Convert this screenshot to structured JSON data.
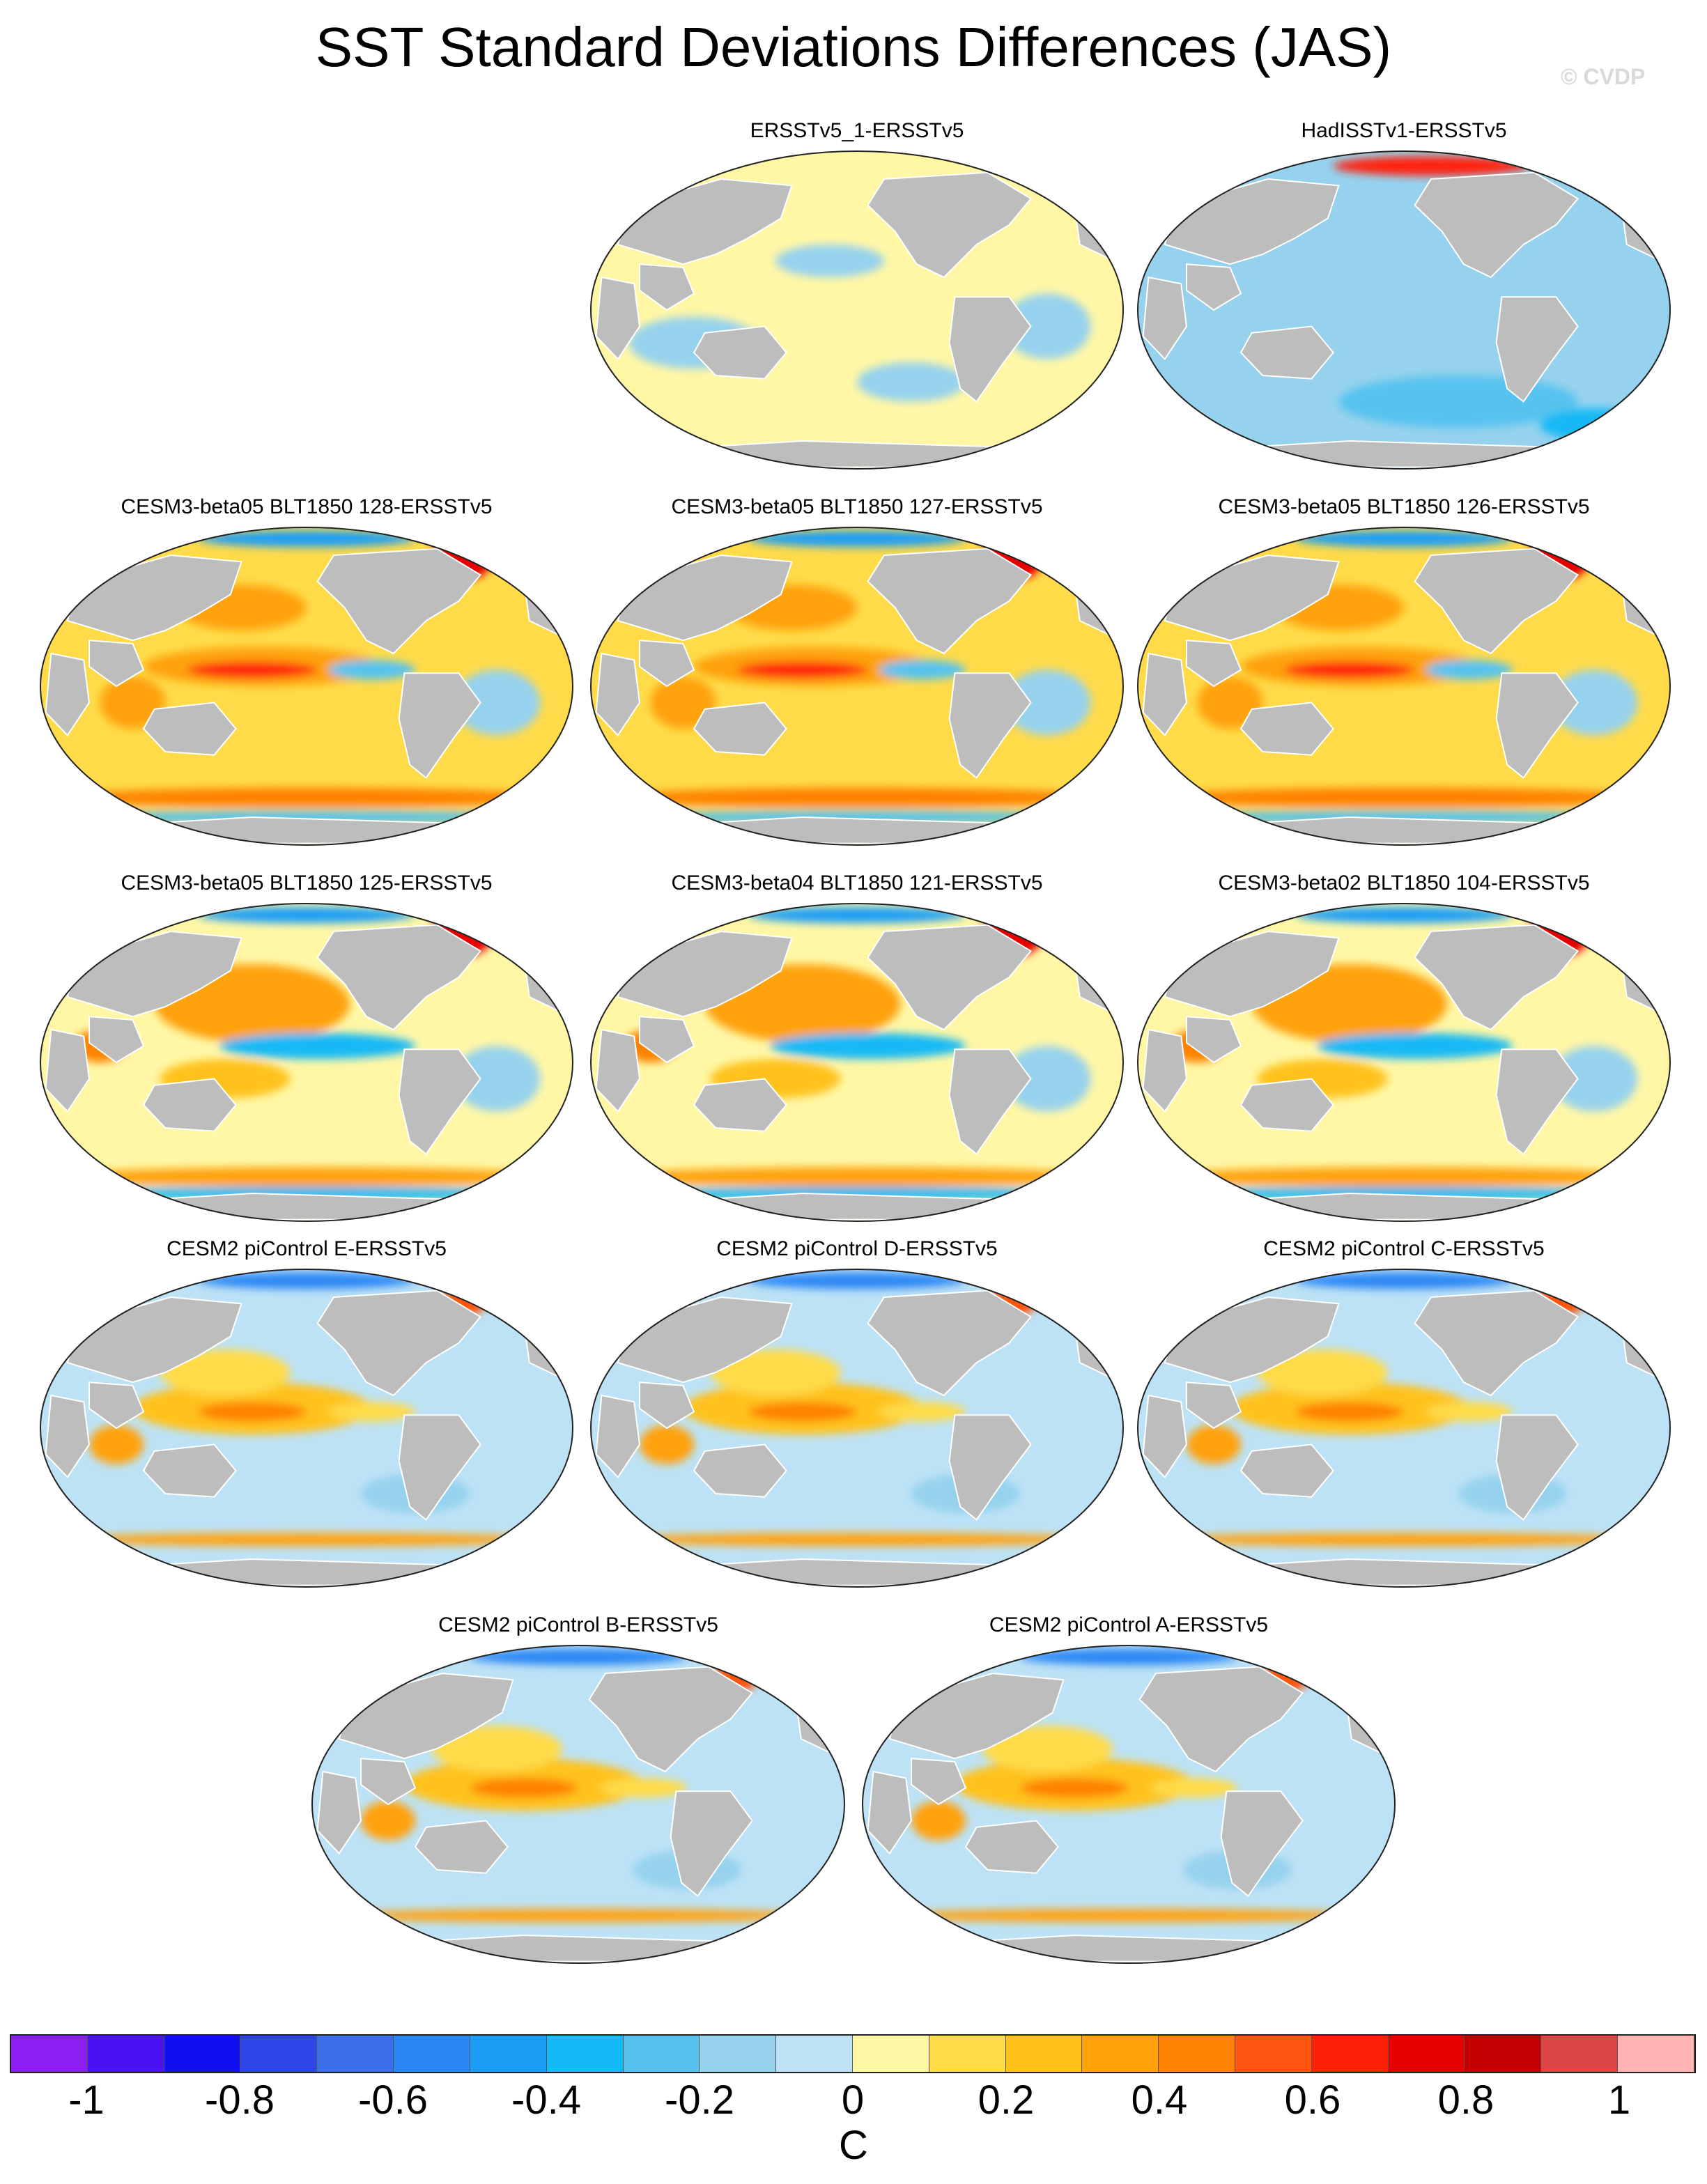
{
  "figure": {
    "title": "SST Standard Deviations Differences (JAS)",
    "credit": "© CVDP"
  },
  "panels": [
    {
      "title": "ERSSTv5_1-ERSSTv5",
      "pattern": "near-zero"
    },
    {
      "title": "HadISSTv1-ERSSTv5",
      "pattern": "negative"
    },
    {
      "title": "CESM3-beta05 BLT1850 128-ERSSTv5",
      "pattern": "positive-strong"
    },
    {
      "title": "CESM3-beta05 BLT1850 127-ERSSTv5",
      "pattern": "positive-strong"
    },
    {
      "title": "CESM3-beta05 BLT1850 126-ERSSTv5",
      "pattern": "positive-strong"
    },
    {
      "title": "CESM3-beta05 BLT1850 125-ERSSTv5",
      "pattern": "positive-with-cold-tongue"
    },
    {
      "title": "CESM3-beta04 BLT1850 121-ERSSTv5",
      "pattern": "positive-with-cold-tongue"
    },
    {
      "title": "CESM3-beta02 BLT1850 104-ERSSTv5",
      "pattern": "positive-with-cold-tongue"
    },
    {
      "title": "CESM2 piControl E-ERSSTv5",
      "pattern": "mixed"
    },
    {
      "title": "CESM2 piControl D-ERSSTv5",
      "pattern": "mixed"
    },
    {
      "title": "CESM2 piControl C-ERSSTv5",
      "pattern": "mixed"
    },
    {
      "title": "CESM2 piControl B-ERSSTv5",
      "pattern": "mixed"
    },
    {
      "title": "CESM2 piControl A-ERSSTv5",
      "pattern": "mixed"
    }
  ],
  "colorbar": {
    "units": "C",
    "colors": [
      "#8b1ef0",
      "#4a12f0",
      "#0f0ff0",
      "#2e46e6",
      "#3b6ee8",
      "#2b86f5",
      "#1a9ef5",
      "#14b9f5",
      "#56c3ef",
      "#96d2ee",
      "#bde2f5",
      "#fff7a6",
      "#ffdb4a",
      "#ffc21a",
      "#ffa20a",
      "#ff8205",
      "#ff5510",
      "#ff2008",
      "#e80000",
      "#c40000",
      "#dd4444",
      "#ffb3b3"
    ],
    "tick_labels": [
      "-1",
      "-0.8",
      "-0.6",
      "-0.4",
      "-0.2",
      "0",
      "0.2",
      "0.4",
      "0.6",
      "0.8",
      "1"
    ],
    "tick_values": [
      -1,
      -0.8,
      -0.6,
      -0.4,
      -0.2,
      0,
      0.2,
      0.4,
      0.6,
      0.8,
      1
    ],
    "min": -1.1,
    "max": 1.1
  },
  "map_colors": {
    "land": "#bdbdbd",
    "outline": "#222222"
  }
}
